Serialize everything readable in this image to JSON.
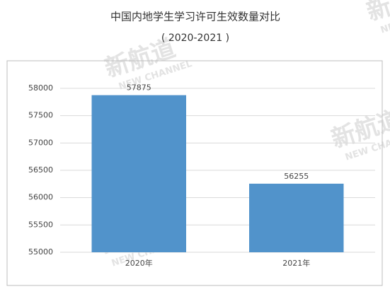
{
  "chart_data": {
    "type": "bar",
    "title": "中国内地学生学习许可生效数量对比",
    "subtitle": "( 2020-2021 )",
    "categories": [
      "2020年",
      "2021年"
    ],
    "values": [
      57875,
      56255
    ],
    "color": "#5193cb",
    "ylim": [
      55000,
      58000
    ],
    "yticks": [
      55000,
      55500,
      56000,
      56500,
      57000,
      57500,
      58000
    ],
    "grid": true,
    "watermark": "新航道",
    "watermark_subtitle": "NEW CHANNEL"
  }
}
